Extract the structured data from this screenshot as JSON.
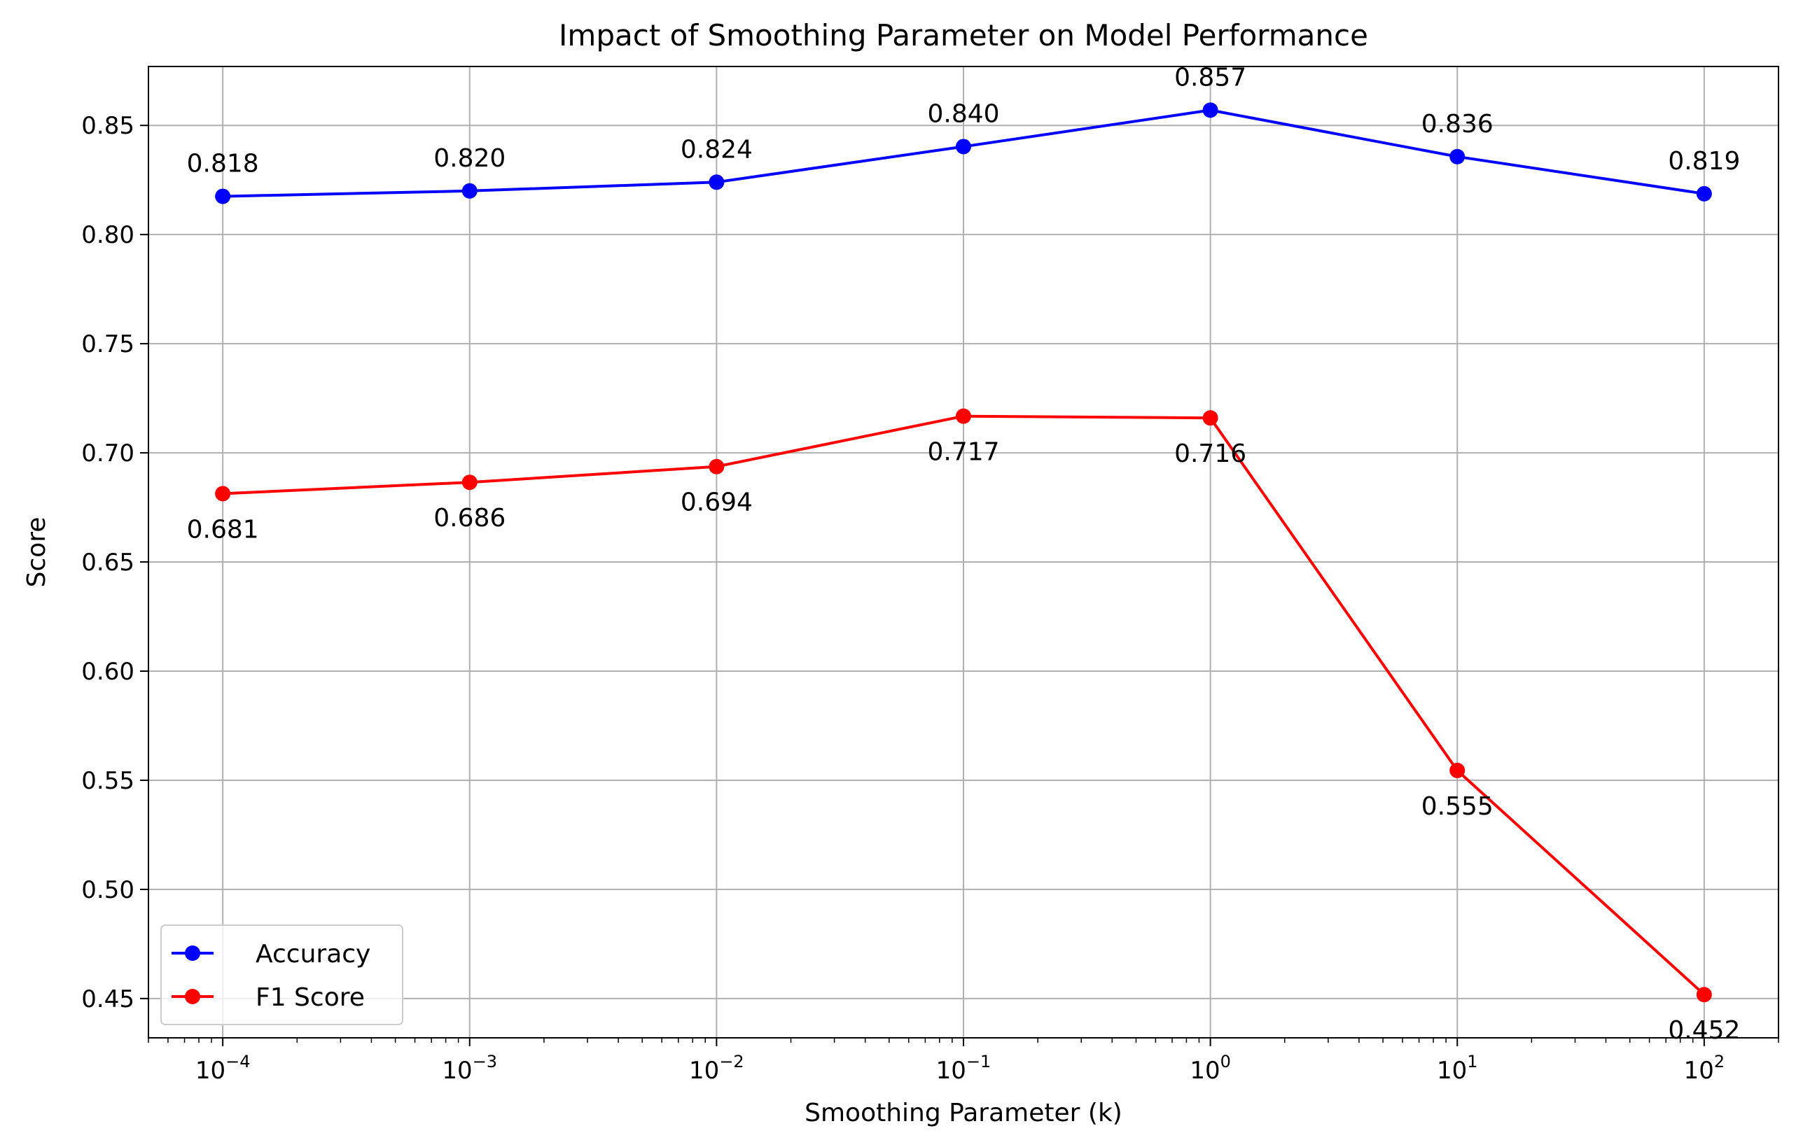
{
  "chart_data": {
    "type": "line",
    "title": "Impact of Smoothing Parameter on Model Performance",
    "xlabel": "Smoothing Parameter (k)",
    "ylabel": "Score",
    "x_scale": "log",
    "x": [
      0.0001,
      0.001,
      0.01,
      0.1,
      1,
      10,
      100
    ],
    "x_tick_labels": [
      {
        "base": "10",
        "exp": "−4"
      },
      {
        "base": "10",
        "exp": "−3"
      },
      {
        "base": "10",
        "exp": "−2"
      },
      {
        "base": "10",
        "exp": "−1"
      },
      {
        "base": "10",
        "exp": "0"
      },
      {
        "base": "10",
        "exp": "1"
      },
      {
        "base": "10",
        "exp": "2"
      }
    ],
    "xlim": [
      5e-05,
      200
    ],
    "ylim": [
      0.432,
      0.877
    ],
    "y_ticks": [
      "0.45",
      "0.50",
      "0.55",
      "0.60",
      "0.65",
      "0.70",
      "0.75",
      "0.80",
      "0.85"
    ],
    "grid": true,
    "legend_position": "lower-left",
    "series": [
      {
        "name": "Accuracy",
        "color": "#0000ff",
        "marker": "circle",
        "values": [
          0.8175,
          0.82,
          0.824,
          0.8403,
          0.857,
          0.8357,
          0.8187
        ],
        "labels": [
          "0.818",
          "0.820",
          "0.824",
          "0.840",
          "0.857",
          "0.836",
          "0.819"
        ],
        "label_position": "above"
      },
      {
        "name": "F1 Score",
        "color": "#ff0000",
        "marker": "circle",
        "values": [
          0.6813,
          0.6865,
          0.6937,
          0.7168,
          0.716,
          0.5545,
          0.4518
        ],
        "labels": [
          "0.681",
          "0.686",
          "0.694",
          "0.717",
          "0.716",
          "0.555",
          "0.452"
        ],
        "label_position": "below"
      }
    ]
  }
}
